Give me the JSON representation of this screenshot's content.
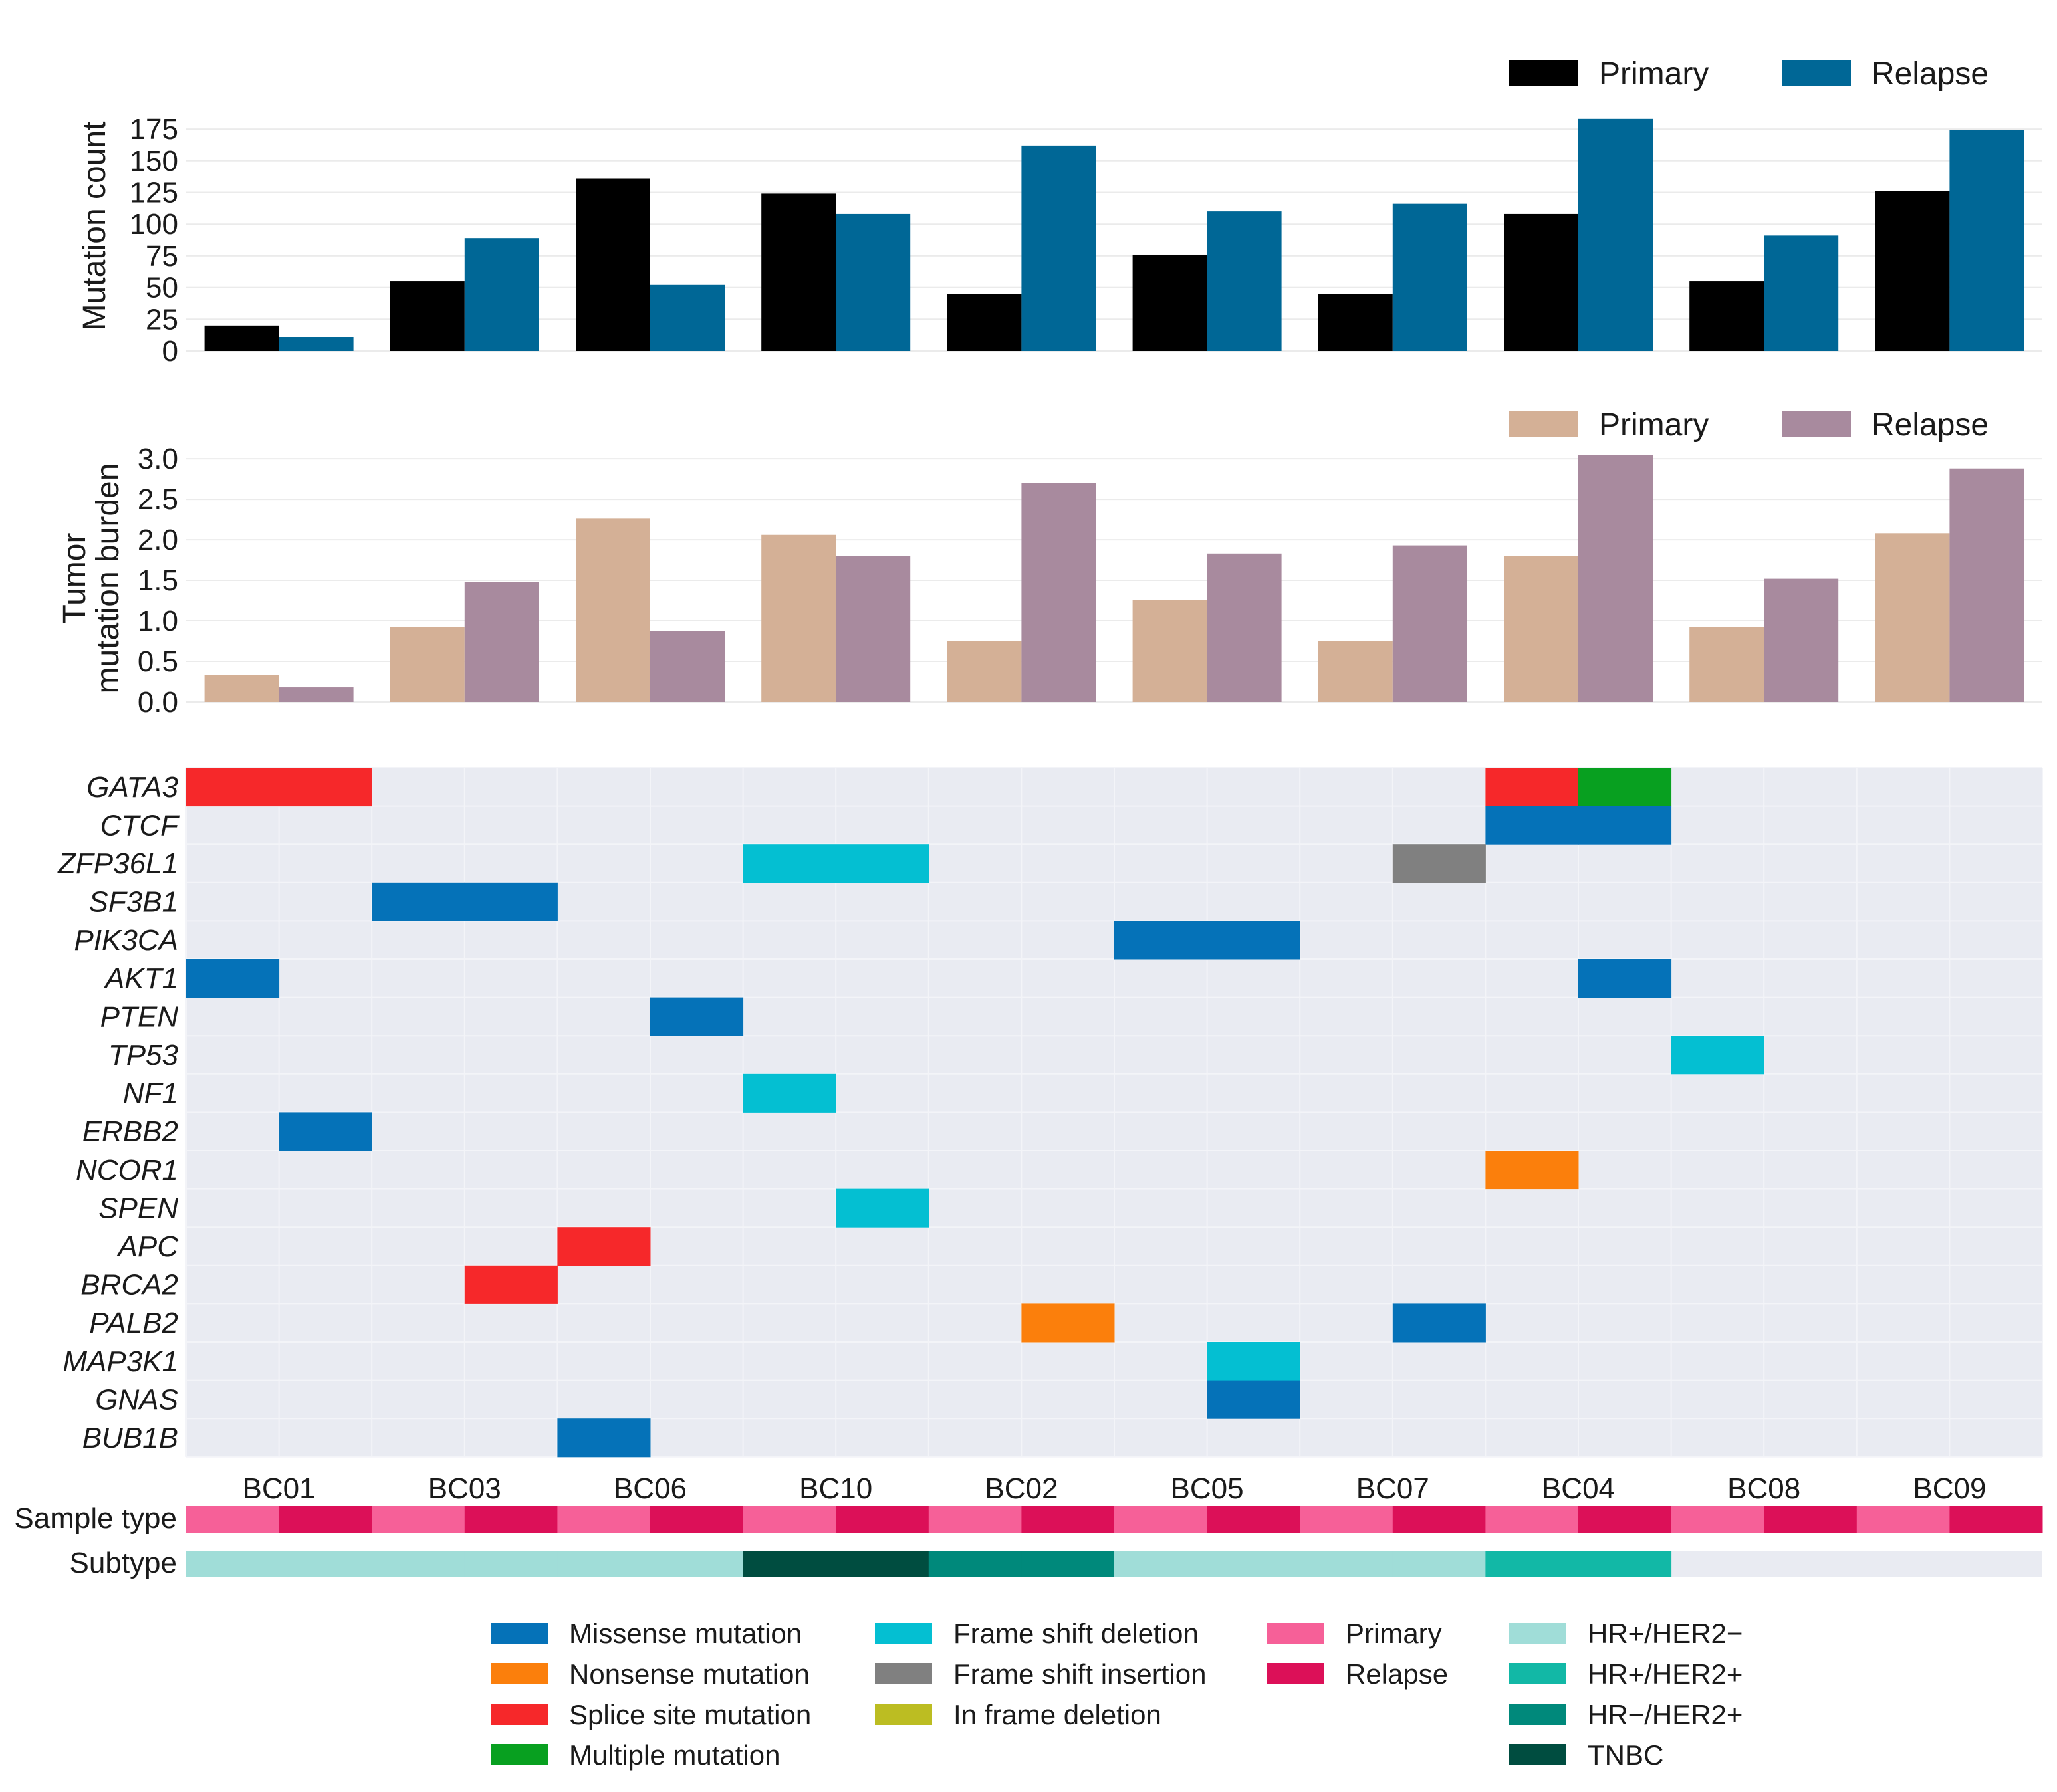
{
  "chart_data": [
    {
      "type": "bar",
      "ylabel": "Mutation count",
      "ylim": [
        0,
        185
      ],
      "yticks": [
        0,
        25,
        50,
        75,
        100,
        125,
        150,
        175
      ],
      "categories": [
        "BC01",
        "BC03",
        "BC06",
        "BC10",
        "BC02",
        "BC05",
        "BC07",
        "BC04",
        "BC08",
        "BC09"
      ],
      "series": [
        {
          "name": "Primary",
          "color": "#000000",
          "values": [
            20,
            55,
            136,
            124,
            45,
            76,
            45,
            108,
            55,
            126
          ]
        },
        {
          "name": "Relapse",
          "color": "#006796",
          "values": [
            11,
            89,
            52,
            108,
            162,
            110,
            116,
            183,
            91,
            174
          ]
        }
      ],
      "legend": [
        {
          "label": "Primary",
          "color": "#000000"
        },
        {
          "label": "Relapse",
          "color": "#006796"
        }
      ]
    },
    {
      "type": "bar",
      "ylabel_lines": [
        "Tumor",
        "mutation burden"
      ],
      "ylim": [
        0,
        3.05
      ],
      "yticks": [
        "0.0",
        "0.5",
        "1.0",
        "1.5",
        "2.0",
        "2.5",
        "3.0"
      ],
      "categories": [
        "BC01",
        "BC03",
        "BC06",
        "BC10",
        "BC02",
        "BC05",
        "BC07",
        "BC04",
        "BC08",
        "BC09"
      ],
      "series": [
        {
          "name": "Primary",
          "color": "#d4b096",
          "values": [
            0.33,
            0.92,
            2.26,
            2.06,
            0.75,
            1.26,
            0.75,
            1.8,
            0.92,
            2.08
          ]
        },
        {
          "name": "Relapse",
          "color": "#a88a9e",
          "values": [
            0.18,
            1.48,
            0.87,
            1.8,
            2.7,
            1.83,
            1.93,
            3.05,
            1.52,
            2.88
          ]
        }
      ],
      "legend": [
        {
          "label": "Primary",
          "color": "#d4b096"
        },
        {
          "label": "Relapse",
          "color": "#a88a9e"
        }
      ]
    },
    {
      "type": "heatmap",
      "genes": [
        "GATA3",
        "CTCF",
        "ZFP36L1",
        "SF3B1",
        "PIK3CA",
        "AKT1",
        "PTEN",
        "TP53",
        "NF1",
        "ERBB2",
        "NCOR1",
        "SPEN",
        "APC",
        "BRCA2",
        "PALB2",
        "MAP3K1",
        "GNAS",
        "BUB1B"
      ],
      "samples": [
        "BC01",
        "BC03",
        "BC06",
        "BC10",
        "BC02",
        "BC05",
        "BC07",
        "BC04",
        "BC08",
        "BC09"
      ],
      "cell_order": "per sample: Primary column then Relapse column",
      "cells": [
        {
          "gene": "GATA3",
          "sample": "BC01",
          "type": "Primary",
          "mutation": "Splice site mutation"
        },
        {
          "gene": "GATA3",
          "sample": "BC01",
          "type": "Relapse",
          "mutation": "Splice site mutation"
        },
        {
          "gene": "GATA3",
          "sample": "BC04",
          "type": "Primary",
          "mutation": "Splice site mutation"
        },
        {
          "gene": "GATA3",
          "sample": "BC04",
          "type": "Relapse",
          "mutation": "Multiple mutation"
        },
        {
          "gene": "CTCF",
          "sample": "BC04",
          "type": "Primary",
          "mutation": "Missense mutation"
        },
        {
          "gene": "CTCF",
          "sample": "BC04",
          "type": "Relapse",
          "mutation": "Missense mutation"
        },
        {
          "gene": "ZFP36L1",
          "sample": "BC10",
          "type": "Primary",
          "mutation": "Frame shift deletion"
        },
        {
          "gene": "ZFP36L1",
          "sample": "BC10",
          "type": "Relapse",
          "mutation": "Frame shift deletion"
        },
        {
          "gene": "ZFP36L1",
          "sample": "BC07",
          "type": "Relapse",
          "mutation": "Frame shift insertion"
        },
        {
          "gene": "SF3B1",
          "sample": "BC03",
          "type": "Primary",
          "mutation": "Missense mutation"
        },
        {
          "gene": "SF3B1",
          "sample": "BC03",
          "type": "Relapse",
          "mutation": "Missense mutation"
        },
        {
          "gene": "PIK3CA",
          "sample": "BC05",
          "type": "Primary",
          "mutation": "Missense mutation"
        },
        {
          "gene": "PIK3CA",
          "sample": "BC05",
          "type": "Relapse",
          "mutation": "Missense mutation"
        },
        {
          "gene": "AKT1",
          "sample": "BC01",
          "type": "Primary",
          "mutation": "Missense mutation"
        },
        {
          "gene": "AKT1",
          "sample": "BC04",
          "type": "Relapse",
          "mutation": "Missense mutation"
        },
        {
          "gene": "PTEN",
          "sample": "BC06",
          "type": "Relapse",
          "mutation": "Missense mutation"
        },
        {
          "gene": "TP53",
          "sample": "BC08",
          "type": "Primary",
          "mutation": "Frame shift deletion"
        },
        {
          "gene": "NF1",
          "sample": "BC10",
          "type": "Primary",
          "mutation": "Frame shift deletion"
        },
        {
          "gene": "ERBB2",
          "sample": "BC01",
          "type": "Relapse",
          "mutation": "Missense mutation"
        },
        {
          "gene": "NCOR1",
          "sample": "BC04",
          "type": "Primary",
          "mutation": "Nonsense mutation"
        },
        {
          "gene": "SPEN",
          "sample": "BC10",
          "type": "Relapse",
          "mutation": "Frame shift deletion"
        },
        {
          "gene": "APC",
          "sample": "BC06",
          "type": "Primary",
          "mutation": "Splice site mutation"
        },
        {
          "gene": "BRCA2",
          "sample": "BC03",
          "type": "Relapse",
          "mutation": "Splice site mutation"
        },
        {
          "gene": "PALB2",
          "sample": "BC02",
          "type": "Relapse",
          "mutation": "Nonsense mutation"
        },
        {
          "gene": "PALB2",
          "sample": "BC07",
          "type": "Relapse",
          "mutation": "Missense mutation"
        },
        {
          "gene": "MAP3K1",
          "sample": "BC05",
          "type": "Relapse",
          "mutation": "Frame shift deletion"
        },
        {
          "gene": "GNAS",
          "sample": "BC05",
          "type": "Relapse",
          "mutation": "Missense mutation"
        },
        {
          "gene": "BUB1B",
          "sample": "BC06",
          "type": "Primary",
          "mutation": "Missense mutation"
        }
      ],
      "annotation_tracks": [
        {
          "label": "Sample type",
          "values": [
            "Primary",
            "Relapse",
            "Primary",
            "Relapse",
            "Primary",
            "Relapse",
            "Primary",
            "Relapse",
            "Primary",
            "Relapse",
            "Primary",
            "Relapse",
            "Primary",
            "Relapse",
            "Primary",
            "Relapse",
            "Primary",
            "Relapse",
            "Primary",
            "Relapse"
          ]
        },
        {
          "label": "Subtype",
          "values": [
            "HR+/HER2−",
            "HR+/HER2−",
            "HR+/HER2−",
            "HR+/HER2−",
            "HR+/HER2−",
            "HR+/HER2−",
            "TNBC",
            "TNBC",
            "HR−/HER2+",
            "HR−/HER2+",
            "HR+/HER2−",
            "HR+/HER2−",
            "HR+/HER2−",
            "HR+/HER2−",
            "HR+/HER2+",
            "HR+/HER2+",
            null,
            null,
            null,
            null
          ]
        }
      ]
    }
  ],
  "colors": {
    "Missense mutation": "#0572b8",
    "Nonsense mutation": "#fb7f0c",
    "Splice site mutation": "#f6282a",
    "Multiple mutation": "#08a020",
    "Frame shift deletion": "#04bfd2",
    "Frame shift insertion": "#808080",
    "In frame deletion": "#bcbd22",
    "Primary": "#f66098",
    "Relapse": "#dc1058",
    "HR+/HER2−": "#a0ddd8",
    "HR+/HER2+": "#12b8a6",
    "HR−/HER2+": "#00897b",
    "TNBC": "#004d40",
    "panel_bg": "#e9ebf2",
    "grid": "#ebebeb"
  },
  "legend": {
    "mutations": [
      "Missense mutation",
      "Nonsense mutation",
      "Splice site mutation",
      "Multiple mutation",
      "Frame shift deletion",
      "Frame shift insertion",
      "In frame deletion"
    ],
    "sample_types": [
      "Primary",
      "Relapse"
    ],
    "subtypes": [
      "HR+/HER2−",
      "HR+/HER2+",
      "HR−/HER2+",
      "TNBC"
    ]
  }
}
